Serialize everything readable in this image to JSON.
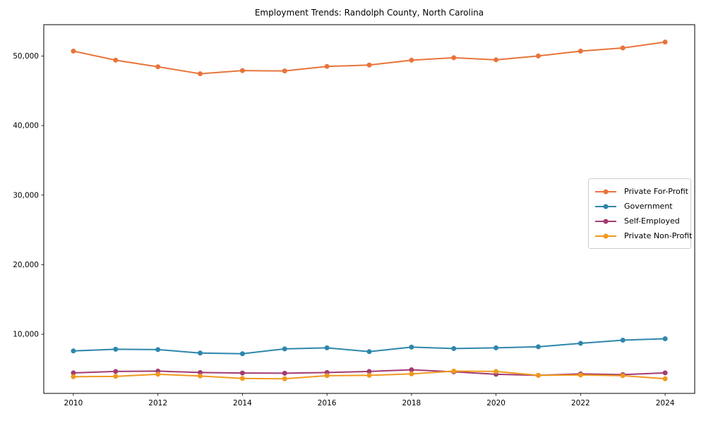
{
  "window": {
    "background_color": "#ffffff",
    "text_color": "#000000",
    "axis_color": "#000000"
  },
  "chart_data": {
    "type": "line",
    "title": "Employment Trends: Randolph County, North Carolina",
    "xlabel": "",
    "ylabel": "",
    "grid": false,
    "legend_position": "center right",
    "marker": "circle",
    "line_width": 2,
    "marker_radius": 3.5,
    "xlim": [
      2009.3,
      2024.7
    ],
    "ylim": [
      1500,
      54500
    ],
    "x": [
      2010,
      2011,
      2012,
      2013,
      2014,
      2015,
      2016,
      2017,
      2018,
      2019,
      2020,
      2021,
      2022,
      2023,
      2024
    ],
    "x_ticks": {
      "values": [
        2010,
        2012,
        2014,
        2016,
        2018,
        2020,
        2022,
        2024
      ],
      "labels": [
        "2010",
        "2012",
        "2014",
        "2016",
        "2018",
        "2020",
        "2022",
        "2024"
      ]
    },
    "y_ticks": {
      "values": [
        10000,
        20000,
        30000,
        40000,
        50000
      ],
      "labels": [
        "10,000",
        "20,000",
        "30,000",
        "40,000",
        "50,000"
      ]
    },
    "series": [
      {
        "name": "Private For-Profit",
        "color": "#E8743B",
        "values": [
          50700,
          49400,
          48450,
          47450,
          47900,
          47850,
          48500,
          48700,
          49400,
          49750,
          49450,
          50000,
          50700,
          51150,
          52000
        ]
      },
      {
        "name": "Government",
        "color": "#2E86AB",
        "values": [
          7600,
          7850,
          7800,
          7300,
          7200,
          7900,
          8050,
          7500,
          8150,
          7950,
          8050,
          8200,
          8700,
          9150,
          9350
        ]
      },
      {
        "name": "Self-Employed",
        "color": "#A23B72",
        "values": [
          4450,
          4650,
          4700,
          4500,
          4430,
          4400,
          4500,
          4650,
          4900,
          4600,
          4250,
          4100,
          4300,
          4200,
          4450
        ]
      },
      {
        "name": "Private Non-Profit",
        "color": "#F0991E",
        "values": [
          3900,
          3950,
          4250,
          4000,
          3650,
          3600,
          4050,
          4100,
          4300,
          4700,
          4650,
          4100,
          4150,
          4050,
          3600
        ]
      }
    ]
  }
}
